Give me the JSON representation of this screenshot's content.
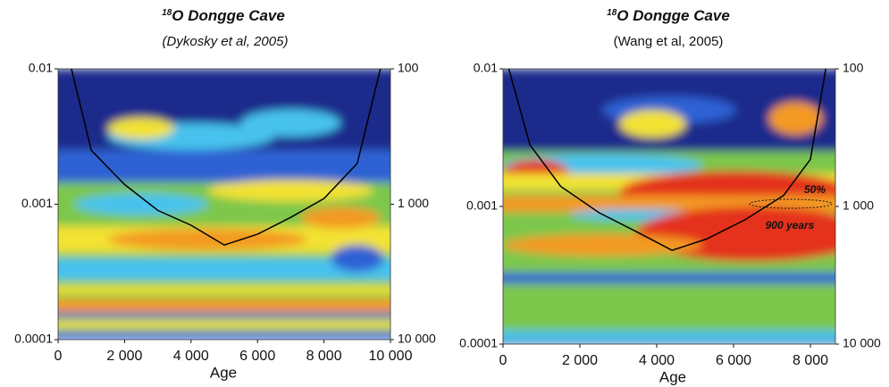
{
  "chart_data": [
    {
      "type": "heatmap",
      "title_superscript": "18",
      "title": "O Dongge Cave",
      "subtitle": "(Dykosky et al, 2005)",
      "xlabel": "Age",
      "xlim": [
        0,
        10000
      ],
      "xticks": [
        0,
        {
          "value": 2000,
          "label": "2 000"
        },
        {
          "value": 4000,
          "label": "4 000"
        },
        {
          "value": 6000,
          "label": "6 000"
        },
        {
          "value": 8000,
          "label": "8 000"
        },
        {
          "value": 10000,
          "label": "10 000"
        }
      ],
      "ylim": [
        0.0001,
        0.01
      ],
      "yscale": "log",
      "yticks": [
        0.0001,
        0.001,
        0.01
      ],
      "y2lim": [
        10000,
        100
      ],
      "y2scale": "log",
      "y2ticks": [
        {
          "value": 10000,
          "label": "10 000"
        },
        {
          "value": 1000,
          "label": "1 000"
        },
        100
      ],
      "series": [
        {
          "color": "#000000",
          "x": [
            400,
            1000,
            2000,
            3000,
            4000,
            5000,
            6000,
            7000,
            8000,
            9000,
            9700
          ],
          "values": [
            0.01,
            0.0025,
            0.0014,
            0.0009,
            0.0007,
            0.0005,
            0.0006,
            0.0008,
            0.0011,
            0.002,
            0.01
          ]
        }
      ]
    },
    {
      "type": "heatmap",
      "title_superscript": "18",
      "title": "O Dongge Cave",
      "subtitle": "(Wang et al, 2005)",
      "xlabel": "Age",
      "xlim": [
        0,
        8650
      ],
      "xticks": [
        0,
        {
          "value": 2000,
          "label": "2 000"
        },
        {
          "value": 4000,
          "label": "4 000"
        },
        {
          "value": 6000,
          "label": "6 000"
        },
        {
          "value": 8000,
          "label": "8 000"
        }
      ],
      "ylim": [
        0.0001,
        0.01
      ],
      "yscale": "log",
      "yticks": [
        0.0001,
        0.001,
        0.01
      ],
      "y2lim": [
        10000,
        100
      ],
      "y2scale": "log",
      "y2ticks": [
        {
          "value": 10000,
          "label": "10 000"
        },
        {
          "value": 1000,
          "label": "1 000"
        },
        100
      ],
      "series": [
        {
          "color": "#000000",
          "x": [
            150,
            700,
            1500,
            2500,
            3500,
            4400,
            5300,
            6300,
            7300,
            8000,
            8400
          ],
          "values": [
            0.01,
            0.0028,
            0.0014,
            0.0009,
            0.00065,
            0.00048,
            0.00058,
            0.0008,
            0.0012,
            0.0022,
            0.01
          ]
        }
      ],
      "annotations": [
        "50%",
        "900 years"
      ]
    }
  ]
}
